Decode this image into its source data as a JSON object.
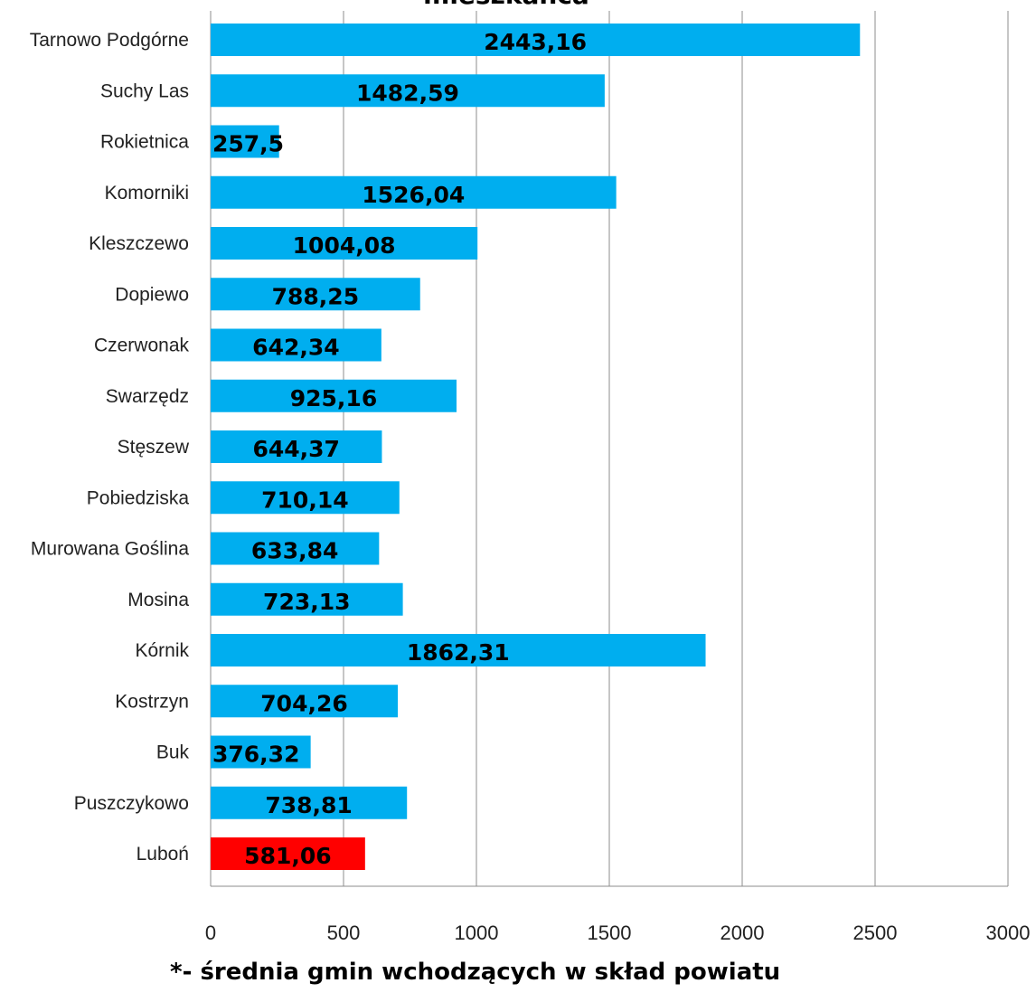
{
  "chart_data": {
    "type": "bar",
    "orientation": "horizontal",
    "title": "mieszkańca",
    "footnote": "*- średnia gmin wchodzących w skład powiatu",
    "categories": [
      "Tarnowo Podgórne",
      "Suchy Las",
      "Rokietnica",
      "Komorniki",
      "Kleszczewo",
      "Dopiewo",
      "Czerwonak",
      "Swarzędz",
      "Stęszew",
      "Pobiedziska",
      "Murowana Goślina",
      "Mosina",
      "Kórnik",
      "Kostrzyn",
      "Buk",
      "Puszczykowo",
      "Luboń"
    ],
    "values": [
      2443.16,
      1482.59,
      257.5,
      1526.04,
      1004.08,
      788.25,
      642.34,
      925.16,
      644.37,
      710.14,
      633.84,
      723.13,
      1862.31,
      704.26,
      376.32,
      738.81,
      581.06
    ],
    "data_labels": [
      "2443,16",
      "1482,59",
      "257,5",
      "1526,04",
      "1004,08",
      "788,25",
      "642,34",
      "925,16",
      "644,37",
      "710,14",
      "633,84",
      "723,13",
      "1862,31",
      "704,26",
      "376,32",
      "738,81",
      "581,06"
    ],
    "bar_colors": [
      "#00AEEF",
      "#00AEEF",
      "#00AEEF",
      "#00AEEF",
      "#00AEEF",
      "#00AEEF",
      "#00AEEF",
      "#00AEEF",
      "#00AEEF",
      "#00AEEF",
      "#00AEEF",
      "#00AEEF",
      "#00AEEF",
      "#00AEEF",
      "#00AEEF",
      "#00AEEF",
      "#FF0000"
    ],
    "xlim": [
      0,
      3000
    ],
    "xticks": [
      0,
      500,
      1000,
      1500,
      2000,
      2500,
      3000
    ],
    "xtick_labels": [
      "0",
      "500",
      "1000",
      "1500",
      "2000",
      "2500",
      "3000"
    ],
    "grid": "vertical",
    "legend": "none"
  }
}
